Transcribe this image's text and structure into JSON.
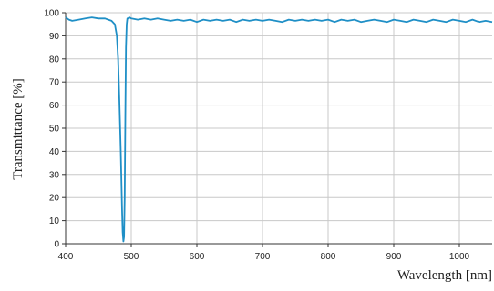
{
  "chart_data": {
    "type": "line",
    "title": "",
    "xlabel": "Wavelength [nm]",
    "ylabel": "Transmittance [%]",
    "xlim": [
      400,
      1050
    ],
    "ylim": [
      0,
      100
    ],
    "x_ticks": [
      400,
      500,
      600,
      700,
      800,
      900,
      1000
    ],
    "y_ticks": [
      0,
      10,
      20,
      30,
      40,
      50,
      60,
      70,
      80,
      90,
      100
    ],
    "grid": true,
    "legend": "none",
    "colors": {
      "line": "#1f8fc6",
      "grid": "#c8c8c8",
      "axis": "#333333"
    },
    "series": [
      {
        "x": [
          400,
          405,
          410,
          420,
          430,
          440,
          450,
          460,
          465,
          470,
          475,
          478,
          480,
          482,
          484,
          486,
          487,
          488,
          489,
          490,
          491,
          492,
          493,
          494,
          495,
          497,
          500,
          510,
          520,
          530,
          540,
          550,
          560,
          570,
          580,
          590,
          600,
          610,
          620,
          630,
          640,
          650,
          660,
          670,
          680,
          690,
          700,
          710,
          720,
          730,
          740,
          750,
          760,
          770,
          780,
          790,
          800,
          810,
          820,
          830,
          840,
          850,
          860,
          870,
          880,
          890,
          900,
          910,
          920,
          930,
          940,
          950,
          960,
          970,
          980,
          990,
          1000,
          1010,
          1020,
          1030,
          1040,
          1050
        ],
        "y": [
          98,
          97,
          96.5,
          97,
          97.5,
          98,
          97.5,
          97.5,
          97,
          96.5,
          95,
          90,
          80,
          62,
          40,
          15,
          5,
          1,
          3,
          20,
          55,
          85,
          95,
          97.5,
          97.5,
          98,
          97.5,
          97,
          97.5,
          97,
          97.5,
          97,
          96.5,
          97,
          96.5,
          97,
          96,
          97,
          96.5,
          97,
          96.5,
          97,
          96,
          97,
          96.5,
          97,
          96.5,
          97,
          96.5,
          96,
          97,
          96.5,
          97,
          96.5,
          97,
          96.5,
          97,
          96,
          97,
          96.5,
          97,
          96,
          96.5,
          97,
          96.5,
          96,
          97,
          96.5,
          96,
          97,
          96.5,
          96,
          97,
          96.5,
          96,
          97,
          96.5,
          96,
          97,
          96,
          96.5,
          96
        ]
      }
    ]
  }
}
